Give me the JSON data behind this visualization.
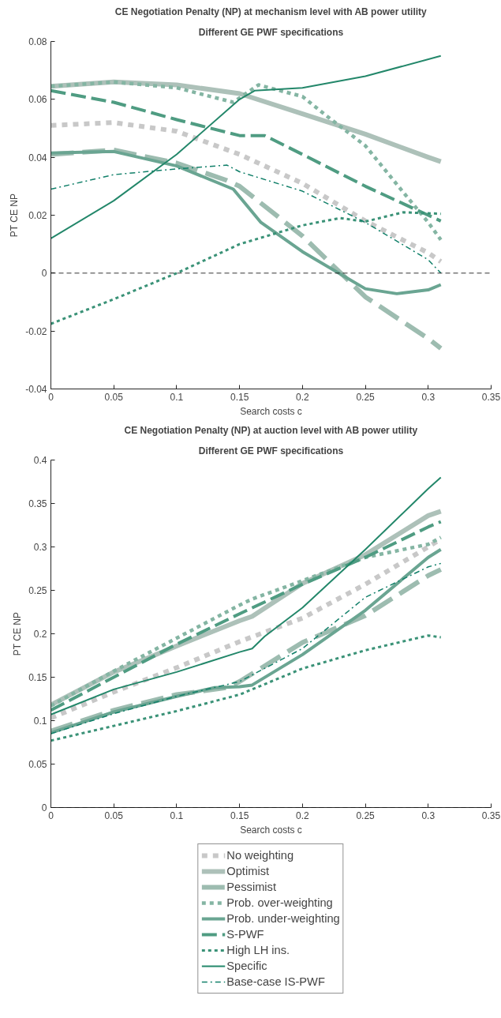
{
  "chart_data": [
    {
      "type": "line",
      "title": "CE Negotiation Penalty (NP) at mechanism level with AB power utility",
      "subtitle": "Different GE PWF specifications",
      "xlabel": "Search costs c",
      "ylabel": "PT CE NP",
      "xlim": [
        0,
        0.35
      ],
      "ylim": [
        -0.04,
        0.08
      ],
      "xticks": [
        0,
        0.05,
        0.1,
        0.15,
        0.2,
        0.25,
        0.3,
        0.35
      ],
      "yticks": [
        -0.04,
        -0.02,
        0,
        0.02,
        0.04,
        0.06,
        0.08
      ],
      "grid": false,
      "legend": false,
      "ref_lines": [
        {
          "axis": "y",
          "value": 0,
          "color": "#000000",
          "line_style": "dashed"
        }
      ],
      "series": [
        {
          "color": "#c8c8c8",
          "line_style": "dotted",
          "x": [
            0,
            0.05,
            0.1,
            0.15,
            0.2,
            0.25,
            0.3,
            0.31
          ],
          "values": [
            0.051,
            0.052,
            0.049,
            0.041,
            0.031,
            0.018,
            0.007,
            0.004
          ]
        },
        {
          "color": "#adc1b9",
          "line_style": "solid",
          "x": [
            0,
            0.05,
            0.1,
            0.15,
            0.2,
            0.25,
            0.3,
            0.31
          ],
          "values": [
            0.0645,
            0.066,
            0.065,
            0.062,
            0.055,
            0.048,
            0.04,
            0.0385
          ]
        },
        {
          "color": "#9dbcb0",
          "line_style": "dashed",
          "x": [
            0,
            0.05,
            0.1,
            0.14,
            0.15,
            0.2,
            0.25,
            0.3,
            0.31
          ],
          "values": [
            0.041,
            0.0425,
            0.038,
            0.032,
            0.03,
            0.0128,
            -0.0082,
            -0.0226,
            -0.026
          ]
        },
        {
          "color": "#84b5a3",
          "line_style": "dotted",
          "x": [
            0,
            0.05,
            0.1,
            0.145,
            0.165,
            0.2,
            0.22,
            0.25,
            0.28,
            0.3,
            0.31
          ],
          "values": [
            0.0645,
            0.066,
            0.064,
            0.059,
            0.065,
            0.061,
            0.054,
            0.044,
            0.028,
            0.0175,
            0.0115
          ]
        },
        {
          "color": "#6aa592",
          "line_style": "solid",
          "x": [
            0,
            0.05,
            0.1,
            0.145,
            0.167,
            0.2,
            0.25,
            0.275,
            0.3,
            0.31
          ],
          "values": [
            0.0415,
            0.042,
            0.037,
            0.029,
            0.0175,
            0.0074,
            -0.0054,
            -0.0071,
            -0.0058,
            -0.004
          ]
        },
        {
          "color": "#4f9c82",
          "line_style": "dashed",
          "x": [
            0,
            0.05,
            0.1,
            0.15,
            0.17,
            0.2,
            0.25,
            0.3,
            0.31
          ],
          "values": [
            0.063,
            0.059,
            0.053,
            0.0475,
            0.0475,
            0.041,
            0.03,
            0.02,
            0.018
          ]
        },
        {
          "color": "#3a9277",
          "line_style": "dotted",
          "x": [
            0,
            0.05,
            0.1,
            0.15,
            0.2,
            0.23,
            0.25,
            0.28,
            0.31
          ],
          "values": [
            -0.0175,
            -0.009,
            0,
            0.01,
            0.0165,
            0.019,
            0.0178,
            0.021,
            0.0205
          ]
        },
        {
          "color": "#23876a",
          "line_style": "solid",
          "x": [
            0,
            0.05,
            0.1,
            0.15,
            0.162,
            0.2,
            0.25,
            0.31
          ],
          "values": [
            0.012,
            0.025,
            0.041,
            0.06,
            0.063,
            0.064,
            0.068,
            0.075
          ]
        },
        {
          "color": "#12806a",
          "line_style": "dashdot",
          "x": [
            0,
            0.05,
            0.1,
            0.14,
            0.15,
            0.2,
            0.25,
            0.3,
            0.31
          ],
          "values": [
            0.029,
            0.034,
            0.036,
            0.0373,
            0.035,
            0.0283,
            0.0175,
            0.0046,
            0
          ]
        }
      ]
    },
    {
      "type": "line",
      "title": "CE Negotiation Penalty (NP) at auction level with AB power utility",
      "subtitle": "Different GE PWF specifications",
      "xlabel": "Search costs c",
      "ylabel": "PT CE NP",
      "xlim": [
        0,
        0.35
      ],
      "ylim": [
        0,
        0.4
      ],
      "xticks": [
        0,
        0.05,
        0.1,
        0.15,
        0.2,
        0.25,
        0.3,
        0.35
      ],
      "yticks": [
        0,
        0.05,
        0.1,
        0.15,
        0.2,
        0.25,
        0.3,
        0.35,
        0.4
      ],
      "grid": false,
      "legend": "bottom",
      "ref_lines": [
        {
          "axis": "y",
          "value": 0,
          "color": "#000000",
          "line_style": "dashed"
        }
      ],
      "series": [
        {
          "name": "No weighting",
          "color": "#c8c8c8",
          "line_style": "dotted",
          "x": [
            0,
            0.05,
            0.1,
            0.15,
            0.2,
            0.25,
            0.3,
            0.31
          ],
          "values": [
            0.103,
            0.133,
            0.161,
            0.191,
            0.218,
            0.257,
            0.3,
            0.309
          ]
        },
        {
          "name": "Optimist",
          "color": "#adc1b9",
          "line_style": "solid",
          "x": [
            0,
            0.05,
            0.1,
            0.15,
            0.16,
            0.2,
            0.25,
            0.3,
            0.31
          ],
          "values": [
            0.118,
            0.156,
            0.186,
            0.215,
            0.22,
            0.258,
            0.291,
            0.336,
            0.341
          ]
        },
        {
          "name": "Pessimist",
          "color": "#9dbcb0",
          "line_style": "dashed",
          "x": [
            0,
            0.05,
            0.1,
            0.14,
            0.15,
            0.2,
            0.25,
            0.3,
            0.31
          ],
          "values": [
            0.088,
            0.112,
            0.13,
            0.138,
            0.145,
            0.19,
            0.221,
            0.267,
            0.274
          ]
        },
        {
          "name": "Prob. over-weighting",
          "color": "#84b5a3",
          "line_style": "dotted",
          "x": [
            0,
            0.05,
            0.1,
            0.15,
            0.16,
            0.2,
            0.25,
            0.3,
            0.31
          ],
          "values": [
            0.117,
            0.157,
            0.195,
            0.233,
            0.24,
            0.261,
            0.288,
            0.303,
            0.311
          ]
        },
        {
          "name": "Prob. under-weighting",
          "color": "#6aa592",
          "line_style": "solid",
          "x": [
            0,
            0.05,
            0.1,
            0.13,
            0.15,
            0.16,
            0.2,
            0.25,
            0.3,
            0.31
          ],
          "values": [
            0.086,
            0.11,
            0.128,
            0.138,
            0.139,
            0.141,
            0.176,
            0.227,
            0.288,
            0.297
          ]
        },
        {
          "name": "S-PWF",
          "color": "#4f9c82",
          "line_style": "dashed",
          "x": [
            0,
            0.05,
            0.1,
            0.15,
            0.2,
            0.25,
            0.3,
            0.31
          ],
          "values": [
            0.112,
            0.15,
            0.188,
            0.223,
            0.257,
            0.288,
            0.323,
            0.329
          ]
        },
        {
          "name": "High LH ins.",
          "color": "#3a9277",
          "line_style": "dotted",
          "x": [
            0,
            0.05,
            0.1,
            0.15,
            0.2,
            0.25,
            0.3,
            0.31
          ],
          "values": [
            0.077,
            0.094,
            0.111,
            0.13,
            0.16,
            0.181,
            0.198,
            0.196
          ]
        },
        {
          "name": "Specific",
          "color": "#23876a",
          "line_style": "solid",
          "x": [
            0,
            0.05,
            0.1,
            0.15,
            0.16,
            0.17,
            0.2,
            0.25,
            0.3,
            0.31
          ],
          "values": [
            0.107,
            0.136,
            0.156,
            0.179,
            0.183,
            0.197,
            0.23,
            0.297,
            0.367,
            0.38
          ]
        },
        {
          "name": "Base-case IS-PWF",
          "color": "#12806a",
          "line_style": "dashdot",
          "x": [
            0,
            0.05,
            0.1,
            0.15,
            0.2,
            0.25,
            0.3,
            0.31
          ],
          "values": [
            0.085,
            0.108,
            0.128,
            0.145,
            0.183,
            0.242,
            0.277,
            0.281
          ]
        }
      ]
    }
  ]
}
